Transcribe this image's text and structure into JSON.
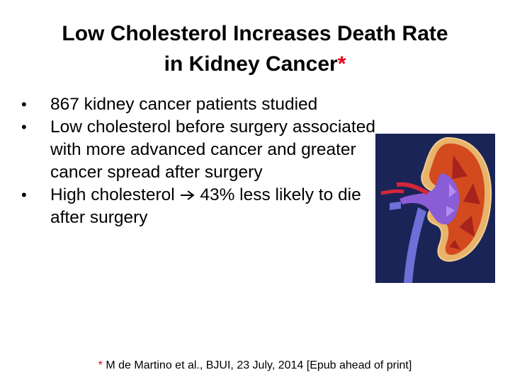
{
  "slide": {
    "title_line1": "Low Cholesterol Increases Death Rate",
    "title_line2": "in Kidney Cancer",
    "title_marker": "*",
    "bullets": [
      {
        "text": "867 kidney cancer patients studied"
      },
      {
        "text": "Low cholesterol before surgery associated with more advanced cancer and greater cancer spread after surgery"
      },
      {
        "text_before": "High cholesterol",
        "text_after": "43% less likely to die after surgery"
      }
    ],
    "footnote_marker": "*",
    "footnote_text": "M de Martino et al., BJUI,  23 July, 2014 [Epub ahead of print]"
  },
  "colors": {
    "accent_red": "#e0001b",
    "image_background": "#1a2456"
  },
  "icons": {
    "bullet": "bullet-dot-icon",
    "arrow": "right-arrow-icon",
    "illustration": "kidney-cross-section-illustration"
  }
}
